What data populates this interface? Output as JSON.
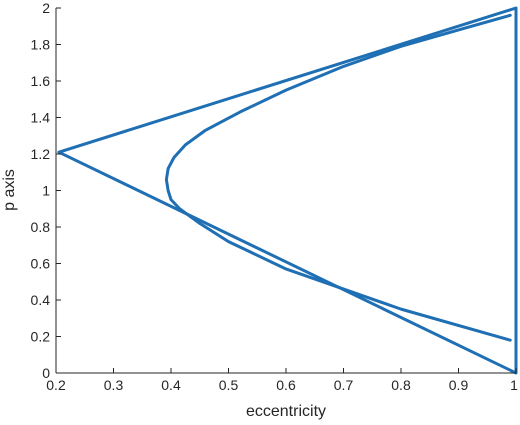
{
  "chart_data": {
    "type": "line",
    "title": "",
    "xlabel": "eccentricity",
    "ylabel": "p axis",
    "xlim": [
      0.2,
      1
    ],
    "ylim": [
      0,
      2
    ],
    "xticks": [
      0.2,
      0.3,
      0.4,
      0.5,
      0.6,
      0.7,
      0.8,
      0.9,
      1
    ],
    "yticks": [
      0,
      0.2,
      0.4,
      0.6,
      0.8,
      1,
      1.2,
      1.4,
      1.6,
      1.8,
      2
    ],
    "xtick_labels": [
      "0.2",
      "0.3",
      "0.4",
      "0.5",
      "0.6",
      "0.7",
      "0.8",
      "0.9",
      "1"
    ],
    "ytick_labels": [
      "0",
      "0.2",
      "0.4",
      "0.6",
      "0.8",
      "1",
      "1.2",
      "1.4",
      "1.6",
      "1.8",
      "2"
    ],
    "grid": false,
    "series": [
      {
        "color": "#1f6fb4",
        "x": [
          1.0,
          0.205,
          1.0,
          1.0
        ],
        "y": [
          0.0,
          1.21,
          2.0,
          0.0
        ]
      },
      {
        "color": "#1f6fb4",
        "x": [
          0.99,
          0.8,
          0.6,
          0.5,
          0.45,
          0.415,
          0.4,
          0.395,
          0.392,
          0.395,
          0.405,
          0.425,
          0.46,
          0.52,
          0.6,
          0.7,
          0.8,
          0.9,
          0.99
        ],
        "y": [
          0.18,
          0.35,
          0.57,
          0.72,
          0.82,
          0.9,
          0.95,
          1.0,
          1.06,
          1.12,
          1.18,
          1.25,
          1.33,
          1.43,
          1.55,
          1.68,
          1.79,
          1.88,
          1.96
        ]
      }
    ]
  }
}
